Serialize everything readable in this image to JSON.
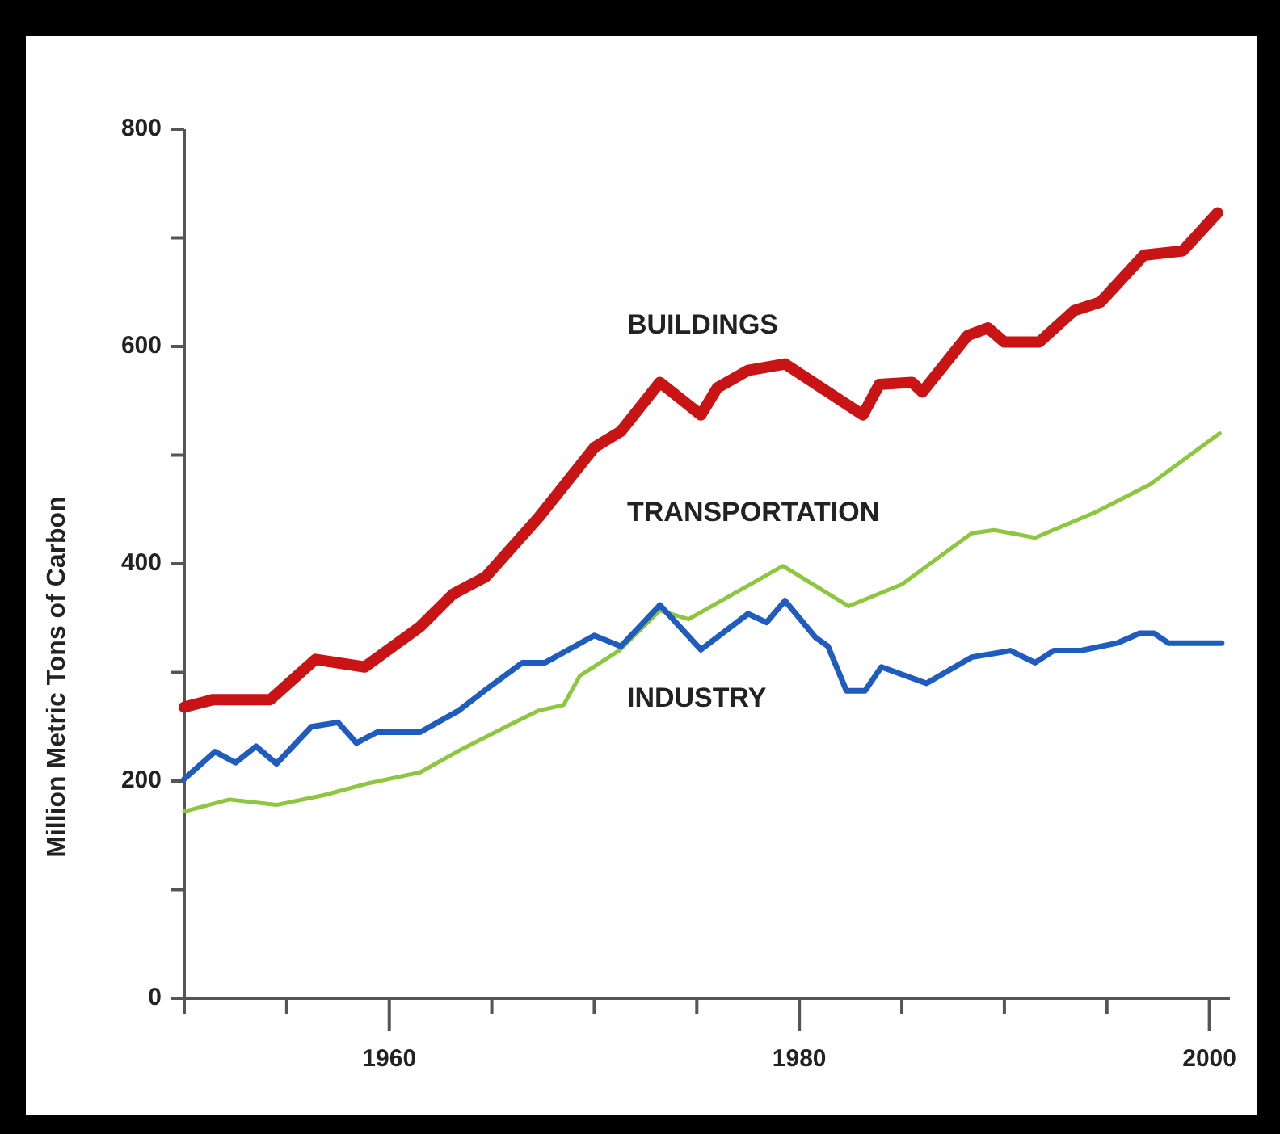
{
  "chart_data": {
    "type": "line",
    "ylabel": "Million Metric Tons of Carbon",
    "xlim": [
      1950,
      2001
    ],
    "ylim": [
      0,
      800
    ],
    "xticks": [
      {
        "value": 1950,
        "label": null
      },
      {
        "value": 1955,
        "label": null
      },
      1960,
      {
        "value": 1965,
        "label": null
      },
      {
        "value": 1970,
        "label": null
      },
      {
        "value": 1975,
        "label": null
      },
      1980,
      {
        "value": 1985,
        "label": null
      },
      {
        "value": 1990,
        "label": null
      },
      {
        "value": 1995,
        "label": null
      },
      2000
    ],
    "yticks": [
      0,
      {
        "value": 100,
        "label": null
      },
      200,
      {
        "value": 300,
        "label": null
      },
      400,
      {
        "value": 500,
        "label": null
      },
      600,
      {
        "value": 700,
        "label": null
      },
      800
    ],
    "grid": false,
    "legend": false,
    "marker": "none",
    "line_style": "solid",
    "series": [
      {
        "name": "BUILDINGS",
        "color": "#c81414",
        "x": [
          1950,
          1951.4,
          1954.2,
          1956.4,
          1958.8,
          1961.5,
          1963.1,
          1964.7,
          1967.3,
          1970,
          1971.3,
          1973.2,
          1975.2,
          1976,
          1977.5,
          1979.3,
          1983.1,
          1983.9,
          1985.5,
          1986,
          1988.2,
          1989.2,
          1990,
          1991.7,
          1993.4,
          1994.7,
          1996.8,
          1998.7,
          2000.4
        ],
        "values": [
          268,
          275,
          275,
          312,
          305,
          342,
          372,
          388,
          443,
          507,
          522,
          567,
          537,
          562,
          578,
          584,
          537,
          565,
          567,
          558,
          610,
          617,
          604,
          604,
          633,
          641,
          684,
          688,
          723
        ]
      },
      {
        "name": "TRANSPORTATION",
        "color": "#8dc63f",
        "x": [
          1950,
          1952.2,
          1954.5,
          1956.8,
          1959,
          1961.5,
          1963.6,
          1966,
          1967.3,
          1968.5,
          1969.3,
          1971.2,
          1973.2,
          1974.6,
          1979.2,
          1982.4,
          1985,
          1988.4,
          1989.5,
          1991.5,
          1994.5,
          1997.1,
          2000.5
        ],
        "values": [
          172,
          183,
          178,
          187,
          198,
          208,
          230,
          253,
          265,
          270,
          297,
          320,
          357,
          349,
          398,
          361,
          381,
          428,
          431,
          424,
          448,
          473,
          520
        ]
      },
      {
        "name": "INDUSTRY",
        "color": "#1f5cbf",
        "x": [
          1950,
          1951.5,
          1952.5,
          1953.5,
          1954.5,
          1956.2,
          1957.5,
          1958.4,
          1959.4,
          1961.5,
          1963.4,
          1964.7,
          1966.5,
          1967.6,
          1970,
          1971.3,
          1973.2,
          1975.2,
          1977.5,
          1978.4,
          1979.3,
          1980.8,
          1981.4,
          1982.3,
          1983.2,
          1984,
          1986.2,
          1988.4,
          1990.3,
          1991.5,
          1992.4,
          1993.7,
          1995.5,
          1996.6,
          1997.3,
          1998,
          2000.6
        ],
        "values": [
          202,
          227,
          217,
          232,
          216,
          250,
          254,
          235,
          245,
          245,
          265,
          284,
          309,
          309,
          334,
          324,
          362,
          321,
          354,
          346,
          366,
          332,
          324,
          283,
          283,
          305,
          290,
          314,
          320,
          309,
          320,
          320,
          327,
          336,
          336,
          327,
          327
        ]
      }
    ]
  }
}
